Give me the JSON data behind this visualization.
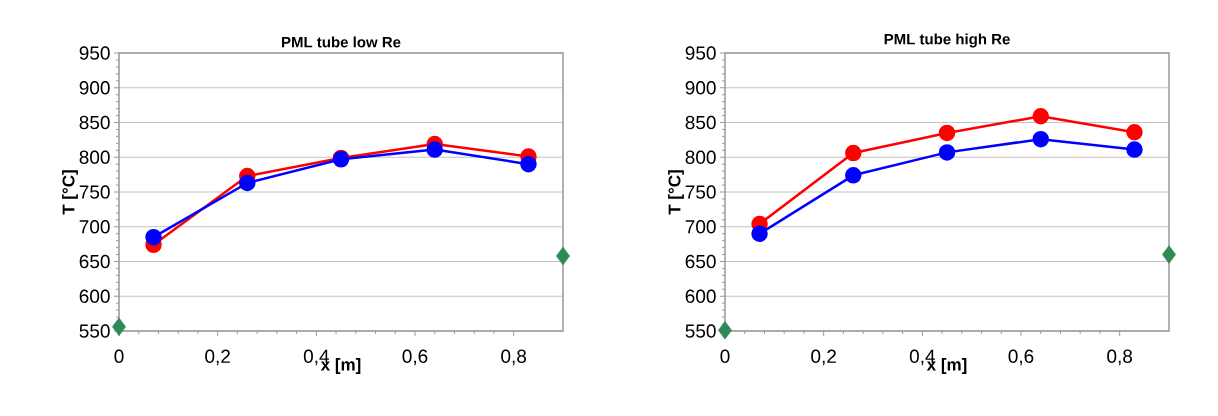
{
  "chart_data": [
    {
      "type": "line",
      "title": "PML tube low Re",
      "xlabel": "x [m]",
      "ylabel": "T [°C]",
      "xlim": [
        0,
        0.9
      ],
      "ylim": [
        550,
        950
      ],
      "xticks": [
        0,
        {
          "value": 0.2,
          "label": "0,2"
        },
        {
          "value": 0.4,
          "label": "0,4"
        },
        {
          "value": 0.6,
          "label": "0,6"
        },
        {
          "value": 0.8,
          "label": "0,8"
        }
      ],
      "yticks": [
        550,
        600,
        650,
        700,
        750,
        800,
        850,
        900,
        950
      ],
      "grid": "y",
      "series": [
        {
          "color": "#ff0000",
          "marker": "circle",
          "x": [
            0.07,
            0.26,
            0.45,
            0.64,
            0.83
          ],
          "values": [
            674,
            773,
            799,
            819,
            801
          ]
        },
        {
          "color": "#0000ff",
          "marker": "circle",
          "x": [
            0.07,
            0.26,
            0.45,
            0.64,
            0.83
          ],
          "values": [
            685,
            763,
            797,
            811,
            790
          ]
        },
        {
          "type": "scatter",
          "color": "#2e8b57",
          "marker": "diamond",
          "x": [
            0,
            0.9
          ],
          "values": [
            556,
            658
          ]
        }
      ]
    },
    {
      "type": "line",
      "title": "PML tube high Re",
      "xlabel": "x [m]",
      "ylabel": "T [°C]",
      "xlim": [
        0,
        0.9
      ],
      "ylim": [
        550,
        950
      ],
      "xticks": [
        0,
        {
          "value": 0.2,
          "label": "0,2"
        },
        {
          "value": 0.4,
          "label": "0,4"
        },
        {
          "value": 0.6,
          "label": "0,6"
        },
        {
          "value": 0.8,
          "label": "0,8"
        }
      ],
      "yticks": [
        550,
        600,
        650,
        700,
        750,
        800,
        850,
        900,
        950
      ],
      "grid": "y",
      "series": [
        {
          "color": "#ff0000",
          "marker": "circle",
          "x": [
            0.07,
            0.26,
            0.45,
            0.64,
            0.83
          ],
          "values": [
            704,
            806,
            835,
            859,
            836
          ]
        },
        {
          "color": "#0000ff",
          "marker": "circle",
          "x": [
            0.07,
            0.26,
            0.45,
            0.64,
            0.83
          ],
          "values": [
            690,
            774,
            807,
            826,
            811
          ]
        },
        {
          "type": "scatter",
          "color": "#2e8b57",
          "marker": "diamond",
          "x": [
            0,
            0.9
          ],
          "values": [
            551,
            660
          ]
        }
      ]
    }
  ]
}
